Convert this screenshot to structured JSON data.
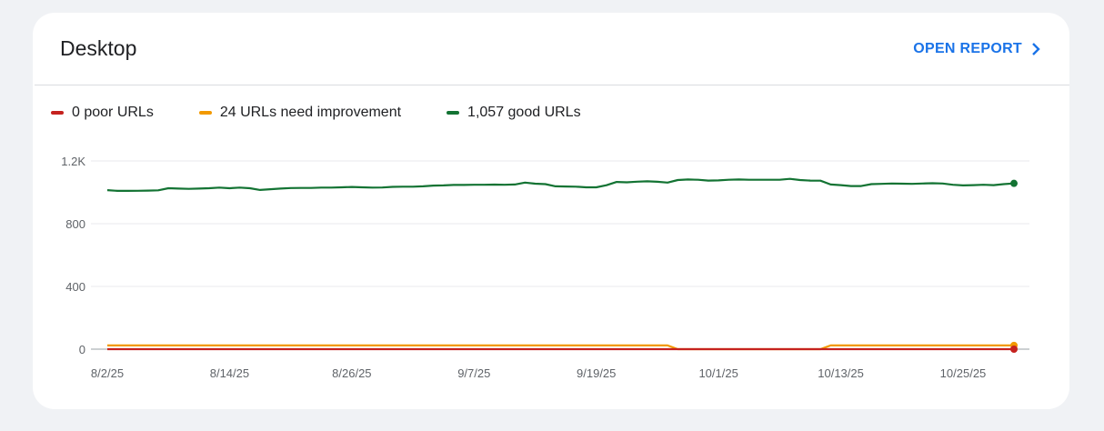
{
  "card": {
    "title": "Desktop",
    "open_report": "OPEN REPORT"
  },
  "legend": [
    {
      "label": "0 poor URLs",
      "color": "#c5221f"
    },
    {
      "label": "24 URLs need improvement",
      "color": "#f29900"
    },
    {
      "label": "1,057 good URLs",
      "color": "#137333"
    }
  ],
  "chart_data": {
    "type": "line",
    "title": "Desktop",
    "x_start": "8/2/25",
    "x_days": 90,
    "xticks": [
      "8/2/25",
      "8/14/25",
      "8/26/25",
      "9/7/25",
      "9/19/25",
      "10/1/25",
      "10/13/25",
      "10/25/25"
    ],
    "yticks": [
      "0",
      "400",
      "800",
      "1.2K"
    ],
    "ytick_values": [
      0,
      400,
      800,
      1200
    ],
    "ylim": [
      0,
      1200
    ],
    "grid": true,
    "legend_position": "top-left",
    "series": [
      {
        "name": "poor",
        "color": "#c5221f",
        "values": [
          0,
          0,
          0,
          0,
          0,
          0,
          0,
          0,
          0,
          0,
          0,
          0,
          0,
          0,
          0,
          0,
          0,
          0,
          0,
          0,
          0,
          0,
          0,
          0,
          0,
          0,
          0,
          0,
          0,
          0,
          0,
          0,
          0,
          0,
          0,
          0,
          0,
          0,
          0,
          0,
          0,
          0,
          0,
          0,
          0,
          0,
          0,
          0,
          0,
          0,
          0,
          0,
          0,
          0,
          0,
          0,
          0,
          0,
          0,
          0,
          0,
          0,
          0,
          0,
          0,
          0,
          0,
          0,
          0,
          0,
          0,
          0,
          0,
          0,
          0,
          0,
          0,
          0,
          0,
          0,
          0,
          0,
          0,
          0,
          0,
          0,
          0,
          0,
          0,
          0
        ]
      },
      {
        "name": "need improvement",
        "color": "#f29900",
        "values": [
          24,
          24,
          24,
          24,
          24,
          24,
          24,
          24,
          24,
          24,
          24,
          24,
          24,
          24,
          24,
          24,
          24,
          24,
          24,
          24,
          24,
          24,
          24,
          24,
          24,
          24,
          24,
          24,
          24,
          24,
          24,
          24,
          24,
          24,
          24,
          24,
          24,
          24,
          24,
          24,
          24,
          24,
          24,
          24,
          24,
          24,
          24,
          24,
          24,
          24,
          24,
          24,
          24,
          24,
          24,
          24,
          0,
          0,
          0,
          0,
          0,
          0,
          0,
          0,
          0,
          0,
          0,
          0,
          0,
          0,
          0,
          24,
          24,
          24,
          24,
          24,
          24,
          24,
          24,
          24,
          24,
          24,
          24,
          24,
          24,
          24,
          24,
          24,
          24,
          24
        ]
      },
      {
        "name": "good",
        "color": "#137333",
        "values": [
          1014,
          1009,
          1009,
          1010,
          1011,
          1013,
          1026,
          1024,
          1022,
          1024,
          1026,
          1030,
          1026,
          1030,
          1026,
          1015,
          1020,
          1024,
          1027,
          1028,
          1028,
          1030,
          1030,
          1032,
          1034,
          1032,
          1030,
          1031,
          1035,
          1036,
          1036,
          1038,
          1043,
          1044,
          1047,
          1047,
          1048,
          1048,
          1049,
          1048,
          1050,
          1062,
          1055,
          1052,
          1038,
          1037,
          1036,
          1032,
          1032,
          1045,
          1066,
          1064,
          1068,
          1070,
          1067,
          1062,
          1078,
          1082,
          1080,
          1075,
          1076,
          1080,
          1082,
          1080,
          1080,
          1080,
          1080,
          1086,
          1078,
          1075,
          1074,
          1050,
          1046,
          1040,
          1040,
          1052,
          1054,
          1056,
          1055,
          1054,
          1056,
          1058,
          1056,
          1048,
          1044,
          1046,
          1048,
          1046,
          1052,
          1057
        ]
      }
    ]
  }
}
